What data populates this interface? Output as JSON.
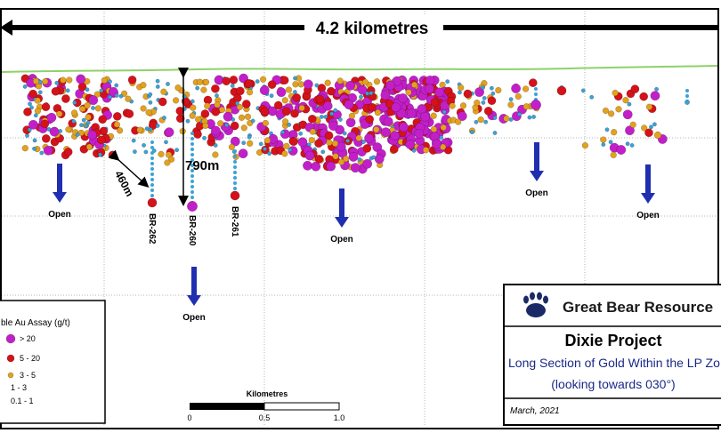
{
  "header": {
    "scale_label": "4.2 kilometres"
  },
  "annotations": {
    "depth_label": "790m",
    "spacing_label": "460m",
    "open_label": "Open",
    "drillholes": [
      "BR-262",
      "BR-260",
      "BR-261"
    ]
  },
  "legend": {
    "title": "ble Au Assay (g/t)",
    "items": [
      {
        "label": "> 20",
        "color": "#c21fc8"
      },
      {
        "label": "5 - 20",
        "color": "#d4121a"
      },
      {
        "label": "3 - 5",
        "color": "#e3a11f"
      },
      {
        "label": "1 - 3",
        "color": "#e8d27a"
      },
      {
        "label": "0.1 - 1",
        "color": "#3ba2d8"
      }
    ]
  },
  "scalebar": {
    "title": "Kilometres",
    "ticks": [
      "0",
      "0.5",
      "1.0"
    ]
  },
  "title_block": {
    "company": "Great Bear Resource",
    "project": "Dixie Project",
    "subtitle": "Long Section of Gold Within the LP Zo",
    "view": "(looking towards 030°)",
    "date": "March, 2021"
  },
  "colors": {
    "surface": "#8fd16a",
    "arrow": "#1f2fb0",
    "grid": "#b5b5b5"
  }
}
